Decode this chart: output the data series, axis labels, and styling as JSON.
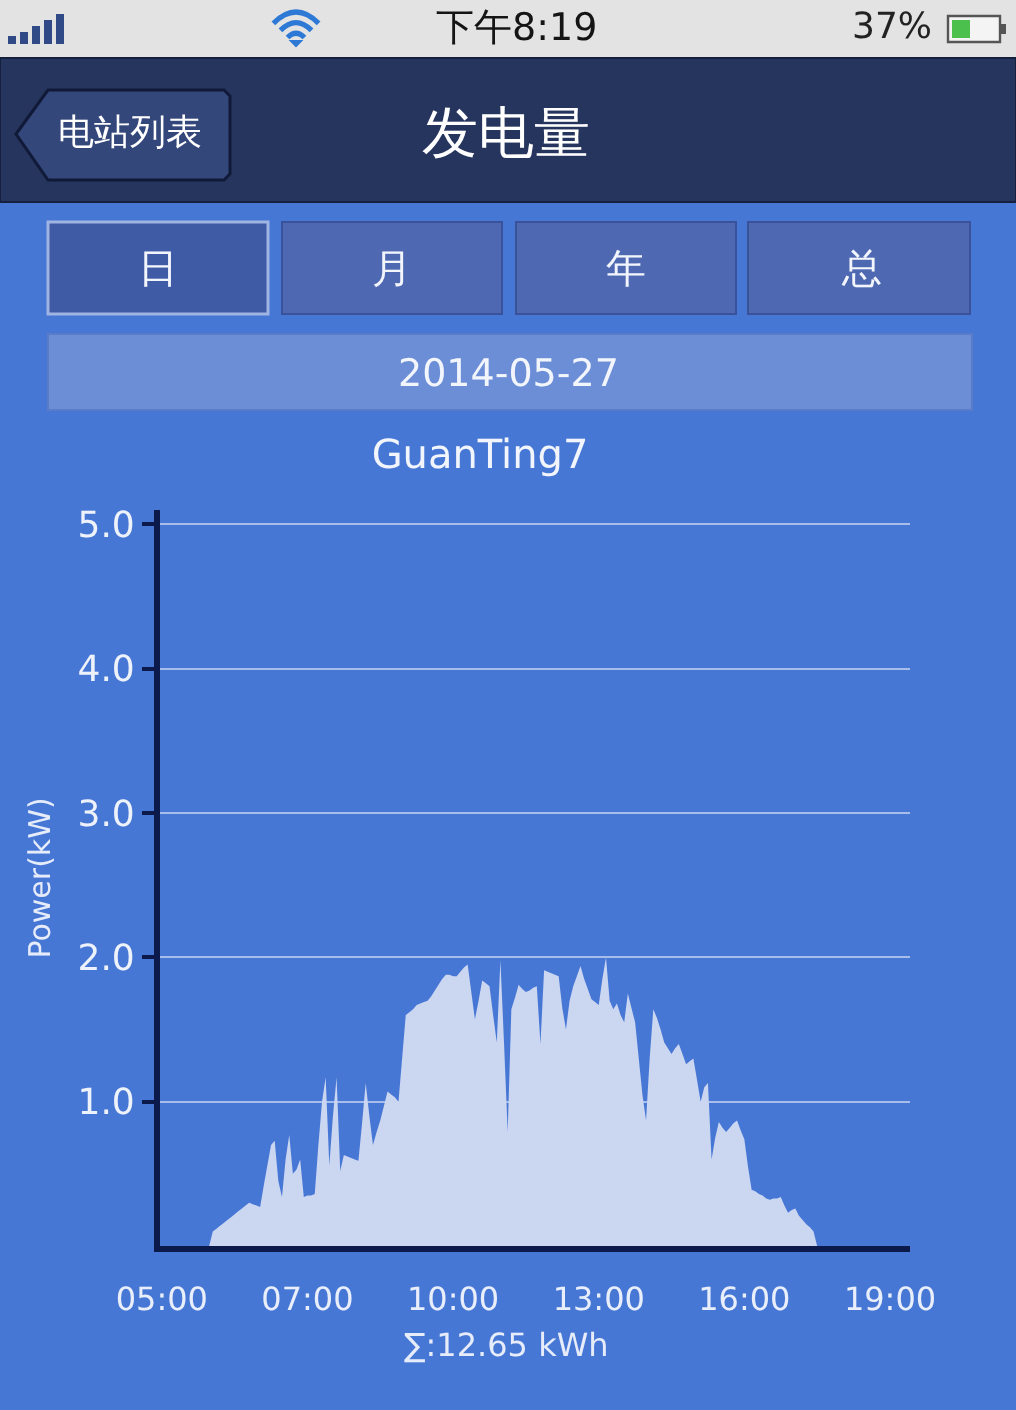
{
  "chart_data": {
    "type": "area",
    "title": "GuanTing7",
    "subtitle": "2014-05-27",
    "ylabel": "Power(kW)",
    "annotations": [
      "下午8:19",
      "37%",
      "电站列表",
      "发电量",
      "日",
      "月",
      "年",
      "总",
      "∑:12.65 kWh"
    ],
    "categories": [
      "05:00",
      null,
      null,
      null,
      null,
      null,
      null,
      null,
      null,
      null,
      null,
      null,
      null,
      null,
      null,
      null,
      null,
      null,
      null,
      null,
      null,
      null,
      null,
      null,
      null,
      null,
      null,
      null,
      null,
      null,
      null,
      null,
      null,
      null,
      null,
      null,
      null,
      null,
      null,
      null,
      "07:00",
      null,
      null,
      null,
      null,
      null,
      null,
      null,
      null,
      null,
      null,
      null,
      null,
      null,
      null,
      null,
      null,
      null,
      null,
      null,
      null,
      null,
      null,
      null,
      null,
      null,
      null,
      null,
      null,
      null,
      null,
      null,
      null,
      null,
      null,
      null,
      null,
      null,
      null,
      null,
      "10:00",
      null,
      null,
      null,
      null,
      null,
      null,
      null,
      null,
      null,
      null,
      null,
      null,
      null,
      null,
      null,
      null,
      null,
      null,
      null,
      null,
      null,
      null,
      null,
      null,
      null,
      null,
      null,
      null,
      null,
      null,
      null,
      null,
      null,
      null,
      null,
      null,
      null,
      null,
      null,
      "13:00",
      null,
      null,
      null,
      null,
      null,
      null,
      null,
      null,
      null,
      null,
      null,
      null,
      null,
      null,
      null,
      null,
      null,
      null,
      null,
      null,
      null,
      null,
      null,
      null,
      null,
      null,
      null,
      null,
      null,
      null,
      null,
      null,
      null,
      null,
      null,
      null,
      null,
      null,
      null,
      "16:00",
      null,
      null,
      null,
      null,
      null,
      null,
      null,
      null,
      null,
      null,
      null,
      null,
      null,
      null,
      null,
      null,
      null,
      null,
      null,
      null,
      null,
      null,
      null,
      null,
      null,
      null,
      null,
      null,
      null,
      null,
      null,
      null,
      null,
      null,
      null,
      null,
      null,
      null,
      null,
      "19:00",
      null,
      null,
      null,
      null,
      null
    ],
    "values": [
      0,
      0,
      0,
      0,
      0,
      0,
      0,
      0,
      0,
      0,
      0,
      0,
      0,
      0,
      0.1,
      0.12,
      0.14,
      0.16,
      0.18,
      0.2,
      0.22,
      0.24,
      0.26,
      0.28,
      0.3,
      0.29,
      0.28,
      0.27,
      0.42,
      0.56,
      0.7,
      0.73,
      0.45,
      0.34,
      0.6,
      0.77,
      0.5,
      0.53,
      0.6,
      0.34,
      0.35,
      0.35,
      0.36,
      0.7,
      1.0,
      1.17,
      0.56,
      0.9,
      1.17,
      0.52,
      0.63,
      0.62,
      0.61,
      0.6,
      0.59,
      0.85,
      1.13,
      0.9,
      0.7,
      0.79,
      0.87,
      0.97,
      1.07,
      1.05,
      1.03,
      1.0,
      1.3,
      1.6,
      1.62,
      1.64,
      1.67,
      1.68,
      1.69,
      1.7,
      1.73,
      1.77,
      1.81,
      1.85,
      1.88,
      1.88,
      1.87,
      1.87,
      1.9,
      1.93,
      1.95,
      1.76,
      1.57,
      1.7,
      1.84,
      1.82,
      1.8,
      1.6,
      1.41,
      1.98,
      1.4,
      0.79,
      1.64,
      1.72,
      1.81,
      1.78,
      1.76,
      1.77,
      1.79,
      1.8,
      1.4,
      1.91,
      1.9,
      1.89,
      1.88,
      1.87,
      1.65,
      1.5,
      1.7,
      1.8,
      1.87,
      1.94,
      1.85,
      1.78,
      1.71,
      1.69,
      1.67,
      1.85,
      2.0,
      1.7,
      1.64,
      1.68,
      1.6,
      1.55,
      1.75,
      1.65,
      1.55,
      1.3,
      1.05,
      0.87,
      1.3,
      1.64,
      1.58,
      1.5,
      1.41,
      1.37,
      1.33,
      1.37,
      1.4,
      1.33,
      1.26,
      1.28,
      1.3,
      1.15,
      1.0,
      1.1,
      1.13,
      0.6,
      0.75,
      0.86,
      0.82,
      0.79,
      0.82,
      0.85,
      0.87,
      0.8,
      0.74,
      0.55,
      0.39,
      0.38,
      0.36,
      0.35,
      0.33,
      0.32,
      0.33,
      0.33,
      0.34,
      0.28,
      0.23,
      0.25,
      0.26,
      0.21,
      0.18,
      0.15,
      0.13,
      0.1,
      0,
      0,
      0,
      0,
      0,
      0,
      0,
      0,
      0,
      0,
      0,
      0,
      0,
      0,
      0,
      0,
      0,
      0,
      0,
      0,
      0,
      0,
      0,
      0,
      0,
      0
    ],
    "color": "#cbd6f1",
    "ylim": [
      0,
      5.1
    ],
    "yticks": [
      {
        "value": 1,
        "label": "1.0"
      },
      {
        "value": 2,
        "label": "2.0"
      },
      {
        "value": 3,
        "label": "3.0"
      },
      {
        "value": 4,
        "label": "4.0"
      },
      {
        "value": 5,
        "label": "5.0"
      }
    ],
    "grid": "y"
  }
}
